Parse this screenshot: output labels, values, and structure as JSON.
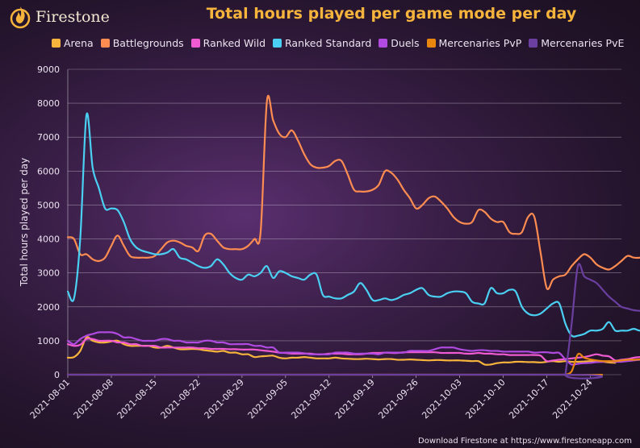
{
  "brand": {
    "name": "Firestone",
    "logo_icon": "flame-logo-icon"
  },
  "footer": "Download Firestone at https://www.firestoneapp.com",
  "chart_data": {
    "type": "line",
    "title": "Total hours played per game mode per day",
    "xlabel": "",
    "ylabel": "Total hours played per day",
    "ylim": [
      0,
      9000
    ],
    "yticks": [
      0,
      1000,
      2000,
      3000,
      4000,
      5000,
      6000,
      7000,
      8000,
      9000
    ],
    "grid": true,
    "legend_position": "top",
    "x_start": "2021-08-01",
    "x_ticks": [
      "2021-08-01",
      "2021-08-08",
      "2021-08-15",
      "2021-08-22",
      "2021-08-29",
      "2021-09-05",
      "2021-09-12",
      "2021-09-19",
      "2021-09-26",
      "2021-10-03",
      "2021-10-10",
      "2021-10-17",
      "2021-10-24"
    ],
    "series": [
      {
        "name": "Arena",
        "color": "#f6b43c",
        "start_day": 0,
        "values": [
          500,
          520,
          700,
          1100,
          1000,
          950,
          950,
          980,
          1000,
          900,
          850,
          850,
          850,
          850,
          800,
          800,
          850,
          800,
          750,
          750,
          760,
          750,
          720,
          700,
          680,
          700,
          650,
          650,
          600,
          600,
          520,
          540,
          550,
          560,
          500,
          480,
          500,
          500,
          520,
          500,
          480,
          480,
          480,
          500,
          480,
          470,
          460,
          460,
          470,
          460,
          450,
          460,
          460,
          440,
          440,
          450,
          440,
          430,
          420,
          430,
          430,
          420,
          420,
          420,
          410,
          400,
          400,
          300,
          300,
          340,
          360,
          360,
          380,
          380,
          370,
          370,
          360,
          380,
          400,
          380,
          400,
          380,
          380,
          390,
          400,
          380,
          380,
          360,
          350
        ]
      },
      {
        "name": "Battlegrounds",
        "color": "#ff8c50",
        "start_day": 0,
        "values": [
          4050,
          4000,
          3550,
          3550,
          3400,
          3350,
          3450,
          3800,
          4100,
          3800,
          3500,
          3450,
          3450,
          3450,
          3500,
          3700,
          3900,
          3950,
          3900,
          3800,
          3750,
          3650,
          4100,
          4150,
          3950,
          3750,
          3700,
          3700,
          3700,
          3800,
          4000,
          4200,
          8050,
          7500,
          7100,
          7000,
          7200,
          6900,
          6500,
          6200,
          6100,
          6100,
          6150,
          6300,
          6300,
          5900,
          5450,
          5400,
          5400,
          5450,
          5600,
          6000,
          5950,
          5750,
          5450,
          5200,
          4900,
          5000,
          5200,
          5250,
          5100,
          4900,
          4650,
          4500,
          4450,
          4500,
          4850,
          4800,
          4600,
          4500,
          4500,
          4200,
          4150,
          4200,
          4650,
          4650,
          3600,
          2550,
          2800,
          2900,
          2950,
          3200,
          3400,
          3550,
          3450,
          3250,
          3150,
          3100,
          3200,
          3350,
          3500,
          3450,
          3450,
          3500,
          3550,
          3550
        ]
      },
      {
        "name": "Ranked Wild",
        "color": "#f05ad2",
        "start_day": 0,
        "values": [
          900,
          850,
          880,
          1050,
          1050,
          1000,
          1000,
          1000,
          950,
          950,
          900,
          900,
          850,
          850,
          850,
          800,
          800,
          800,
          800,
          800,
          800,
          780,
          780,
          760,
          760,
          760,
          750,
          750,
          740,
          740,
          740,
          720,
          700,
          680,
          650,
          640,
          620,
          620,
          620,
          620,
          600,
          600,
          620,
          620,
          620,
          600,
          600,
          600,
          620,
          640,
          640,
          650,
          640,
          640,
          660,
          660,
          660,
          660,
          660,
          660,
          640,
          640,
          640,
          640,
          620,
          620,
          640,
          620,
          620,
          600,
          600,
          580,
          580,
          580,
          580,
          580,
          560,
          400,
          420,
          440,
          460,
          480,
          500,
          520,
          560,
          600,
          560,
          540,
          420,
          440,
          460,
          500,
          520,
          540,
          560,
          580
        ]
      },
      {
        "name": "Ranked Standard",
        "color": "#4ad0f2",
        "start_day": 0,
        "values": [
          2450,
          2250,
          4000,
          7650,
          6100,
          5500,
          4900,
          4900,
          4850,
          4500,
          4000,
          3750,
          3650,
          3600,
          3550,
          3550,
          3600,
          3700,
          3450,
          3400,
          3300,
          3200,
          3150,
          3200,
          3400,
          3250,
          3000,
          2850,
          2800,
          2950,
          2900,
          3000,
          3200,
          2850,
          3050,
          3000,
          2900,
          2850,
          2800,
          2950,
          2950,
          2350,
          2300,
          2250,
          2250,
          2350,
          2450,
          2700,
          2500,
          2200,
          2200,
          2250,
          2200,
          2250,
          2350,
          2400,
          2500,
          2550,
          2350,
          2300,
          2300,
          2400,
          2450,
          2450,
          2400,
          2150,
          2100,
          2100,
          2550,
          2400,
          2400,
          2500,
          2450,
          2000,
          1800,
          1750,
          1800,
          1950,
          2100,
          2100,
          1500,
          1150,
          1150,
          1200,
          1300,
          1300,
          1350,
          1550,
          1300,
          1300,
          1300,
          1350,
          1300,
          1400,
          1600,
          1450,
          1400,
          1400,
          1500,
          1550
        ]
      },
      {
        "name": "Duels",
        "color": "#b04ae0",
        "start_day": 0,
        "values": [
          1000,
          900,
          1050,
          1150,
          1200,
          1250,
          1250,
          1250,
          1200,
          1100,
          1100,
          1050,
          1000,
          1000,
          1000,
          1050,
          1050,
          1000,
          1000,
          950,
          950,
          950,
          1000,
          1000,
          950,
          950,
          900,
          900,
          900,
          900,
          850,
          850,
          800,
          800,
          650,
          650,
          650,
          650,
          630,
          600,
          600,
          600,
          600,
          650,
          650,
          650,
          620,
          620,
          620,
          620,
          600,
          650,
          650,
          650,
          650,
          700,
          700,
          700,
          700,
          750,
          800,
          800,
          800,
          750,
          720,
          700,
          720,
          720,
          700,
          700,
          680,
          680,
          680,
          680,
          680,
          650,
          660,
          660,
          640,
          640,
          450,
          300,
          320,
          340,
          350,
          370,
          380,
          400,
          380,
          380,
          400,
          420,
          440,
          450,
          460,
          500,
          520,
          560,
          560
        ]
      },
      {
        "name": "Mercenaries PvP",
        "color": "#e8860e",
        "start_day": 80,
        "values": [
          0,
          100,
          600,
          500,
          450,
          420,
          400,
          400,
          400,
          420,
          440,
          440,
          450,
          450,
          420,
          400
        ]
      },
      {
        "name": "Mercenaries PvE",
        "color": "#6a3fa0",
        "start_day": 80,
        "values": [
          0,
          1500,
          3200,
          2900,
          2800,
          2700,
          2500,
          2300,
          2150,
          2000,
          1950,
          1900,
          1880,
          1850,
          1830
        ]
      }
    ]
  }
}
